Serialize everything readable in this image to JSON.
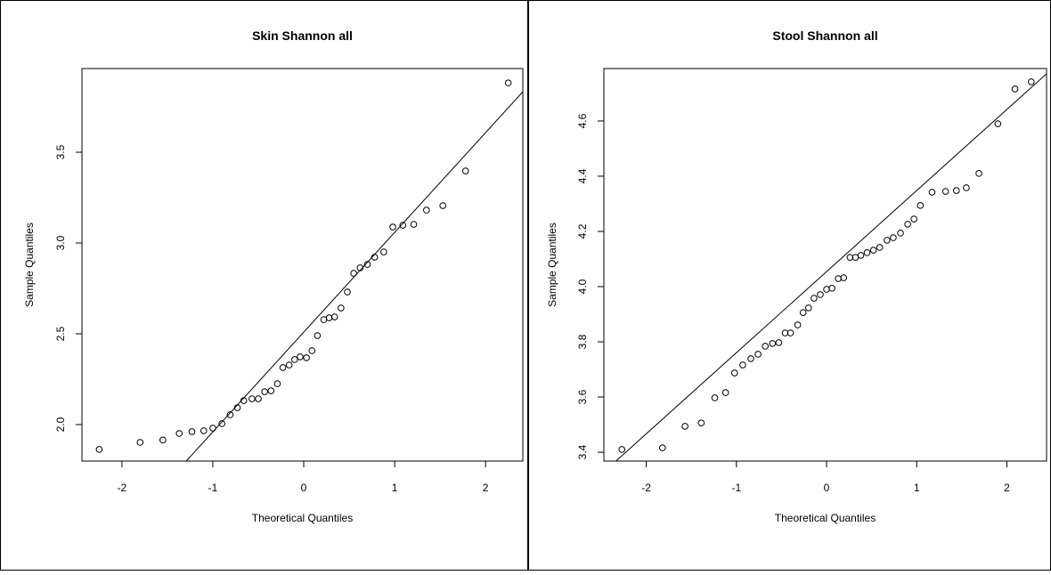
{
  "chart_data": [
    {
      "type": "scatter",
      "title": "Skin Shannon all",
      "x_label": "Theoretical Quantiles",
      "y_label": "Sample Quantiles",
      "x": [
        -2.25,
        -1.8,
        -1.55,
        -1.37,
        -1.23,
        -1.1,
        -1.0,
        -0.9,
        -0.81,
        -0.73,
        -0.66,
        -0.57,
        -0.5,
        -0.43,
        -0.36,
        -0.29,
        -0.23,
        -0.16,
        -0.1,
        -0.04,
        0.03,
        0.09,
        0.15,
        0.22,
        0.28,
        0.34,
        0.41,
        0.48,
        0.55,
        0.62,
        0.7,
        0.78,
        0.88,
        0.98,
        1.09,
        1.21,
        1.35,
        1.53,
        1.78,
        2.25
      ],
      "values": [
        1.863,
        1.902,
        1.915,
        1.951,
        1.961,
        1.966,
        1.98,
        2.005,
        2.054,
        2.093,
        2.132,
        2.142,
        2.142,
        2.181,
        2.186,
        2.225,
        2.314,
        2.328,
        2.358,
        2.373,
        2.368,
        2.407,
        2.49,
        2.578,
        2.588,
        2.593,
        2.642,
        2.73,
        2.833,
        2.863,
        2.882,
        2.922,
        2.951,
        3.088,
        3.098,
        3.103,
        3.181,
        3.206,
        3.397,
        3.882
      ],
      "reference_line": {
        "x": [
          -1.32,
          2.41
        ],
        "y": [
          1.784,
          3.833
        ]
      },
      "xlim": [
        -2.44,
        2.41
      ],
      "ylim": [
        1.799,
        3.961
      ],
      "xticks": [
        -2,
        -1,
        0,
        1,
        2
      ],
      "yticks": [
        {
          "value": 2,
          "label": "2.0"
        },
        2.5,
        {
          "value": 3,
          "label": "3.0"
        },
        3.5
      ]
    },
    {
      "type": "scatter",
      "title": "Stool Shannon all",
      "x_label": "Theoretical Quantiles",
      "y_label": "Sample Quantiles",
      "x": [
        -2.27,
        -1.82,
        -1.57,
        -1.39,
        -1.24,
        -1.12,
        -1.02,
        -0.93,
        -0.84,
        -0.76,
        -0.68,
        -0.6,
        -0.53,
        -0.46,
        -0.4,
        -0.32,
        -0.26,
        -0.2,
        -0.14,
        -0.07,
        0.0,
        0.06,
        0.13,
        0.19,
        0.26,
        0.32,
        0.38,
        0.45,
        0.52,
        0.59,
        0.67,
        0.74,
        0.82,
        0.9,
        0.97,
        1.04,
        1.17,
        1.32,
        1.44,
        1.55,
        1.69,
        1.9,
        2.09,
        2.27
      ],
      "values": [
        3.41,
        3.416,
        3.494,
        3.506,
        3.597,
        3.616,
        3.687,
        3.716,
        3.739,
        3.755,
        3.784,
        3.794,
        3.797,
        3.832,
        3.832,
        3.861,
        3.906,
        3.923,
        3.958,
        3.971,
        3.99,
        3.994,
        4.029,
        4.032,
        4.106,
        4.106,
        4.113,
        4.123,
        4.132,
        4.142,
        4.168,
        4.177,
        4.194,
        4.226,
        4.245,
        4.294,
        4.342,
        4.345,
        4.348,
        4.358,
        4.41,
        4.59,
        4.716,
        4.742
      ],
      "reference_line": {
        "x": [
          -2.36,
          2.45
        ],
        "y": [
          3.361,
          4.774
        ]
      },
      "xlim": [
        -2.47,
        2.44
      ],
      "ylim": [
        3.368,
        4.79
      ],
      "xticks": [
        -2,
        -1,
        0,
        1,
        2
      ],
      "yticks": [
        3.4,
        3.6,
        3.8,
        {
          "value": 4,
          "label": "4.0"
        },
        4.2,
        4.4,
        4.6
      ]
    }
  ]
}
